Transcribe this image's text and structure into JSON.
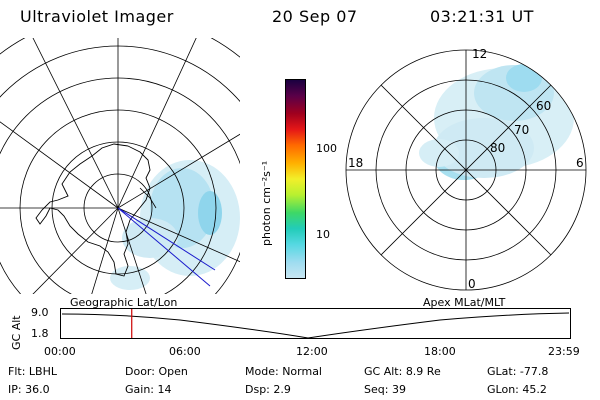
{
  "header": {
    "title": "Ultraviolet Imager",
    "date": "20 Sep 07",
    "time": "03:21:31 UT"
  },
  "left_panel": {
    "caption": "Geographic Lat/Lon"
  },
  "right_panel": {
    "caption": "Apex MLat/MLT",
    "mlt_labels": {
      "top": "12",
      "left": "18",
      "right": "6",
      "bottom": "0"
    },
    "mlat_labels": [
      "60",
      "70",
      "80"
    ]
  },
  "colorbar": {
    "unit_label": "photon cm⁻²s⁻¹",
    "tick_labels": [
      "100",
      "10"
    ],
    "colors": [
      "#c8e6f2",
      "#9edcf0",
      "#55d8e2",
      "#22ccb8",
      "#3ed866",
      "#b8f030",
      "#f2ef2a",
      "#ffb000",
      "#ff6a00",
      "#e51717",
      "#a0001e",
      "#5a0048",
      "#1a0040"
    ]
  },
  "timeline": {
    "ylabel": "GC Alt",
    "y_ticks": [
      "9.0",
      "1.8"
    ],
    "x_ticks": [
      "00:00",
      "06:00",
      "12:00",
      "18:00",
      "23:59"
    ],
    "marker_time": "03:21",
    "marker_color": "#cc0000"
  },
  "status": {
    "rows": [
      [
        {
          "label": "Flt:",
          "value": "LBHL"
        },
        {
          "label": "Door:",
          "value": "Open"
        },
        {
          "label": "Mode:",
          "value": "Normal"
        },
        {
          "label": "GC Alt:",
          "value": "8.9 Re"
        },
        {
          "label": "GLat:",
          "value": "-77.8"
        }
      ],
      [
        {
          "label": "IP:",
          "value": "36.0"
        },
        {
          "label": "Gain:",
          "value": "14"
        },
        {
          "label": "Dsp:",
          "value": "2.9"
        },
        {
          "label": "Seq:",
          "value": "39"
        },
        {
          "label": "GLon:",
          "value": "45.2"
        }
      ]
    ]
  }
}
